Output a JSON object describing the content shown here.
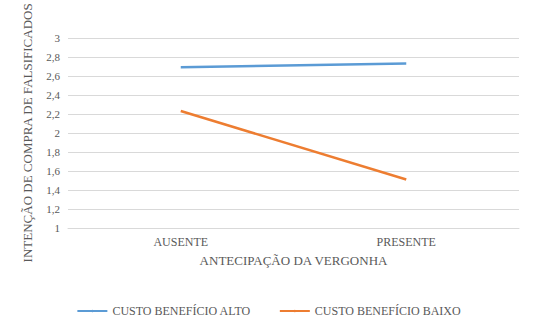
{
  "chart_data": {
    "type": "line",
    "x_label": "ANTECIPAÇÃO DA VERGONHA",
    "y_label": "INTENÇÃO DE COMPRA DE FALSIFICADOS",
    "categories": [
      "AUSENTE",
      "PRESENTE"
    ],
    "series": [
      {
        "name": "CUSTO BENEFÍCIO ALTO",
        "color": "#5b9bd5",
        "values": [
          2.69,
          2.73
        ]
      },
      {
        "name": "CUSTO BENEFÍCIO BAIXO",
        "color": "#ed7d31",
        "values": [
          2.23,
          1.51
        ]
      }
    ],
    "ylim": [
      1,
      3
    ],
    "yticks": [
      {
        "value": 1,
        "label": "1"
      },
      {
        "value": 1.2,
        "label": "1,2"
      },
      {
        "value": 1.4,
        "label": "1,4"
      },
      {
        "value": 1.6,
        "label": "1,6"
      },
      {
        "value": 1.8,
        "label": "1,8"
      },
      {
        "value": 2,
        "label": "2"
      },
      {
        "value": 2.2,
        "label": "2,2"
      },
      {
        "value": 2.4,
        "label": "2,4"
      },
      {
        "value": 2.6,
        "label": "2,6"
      },
      {
        "value": 2.8,
        "label": "2,8"
      },
      {
        "value": 3,
        "label": "3"
      }
    ],
    "grid": true,
    "legend": "bottom"
  }
}
